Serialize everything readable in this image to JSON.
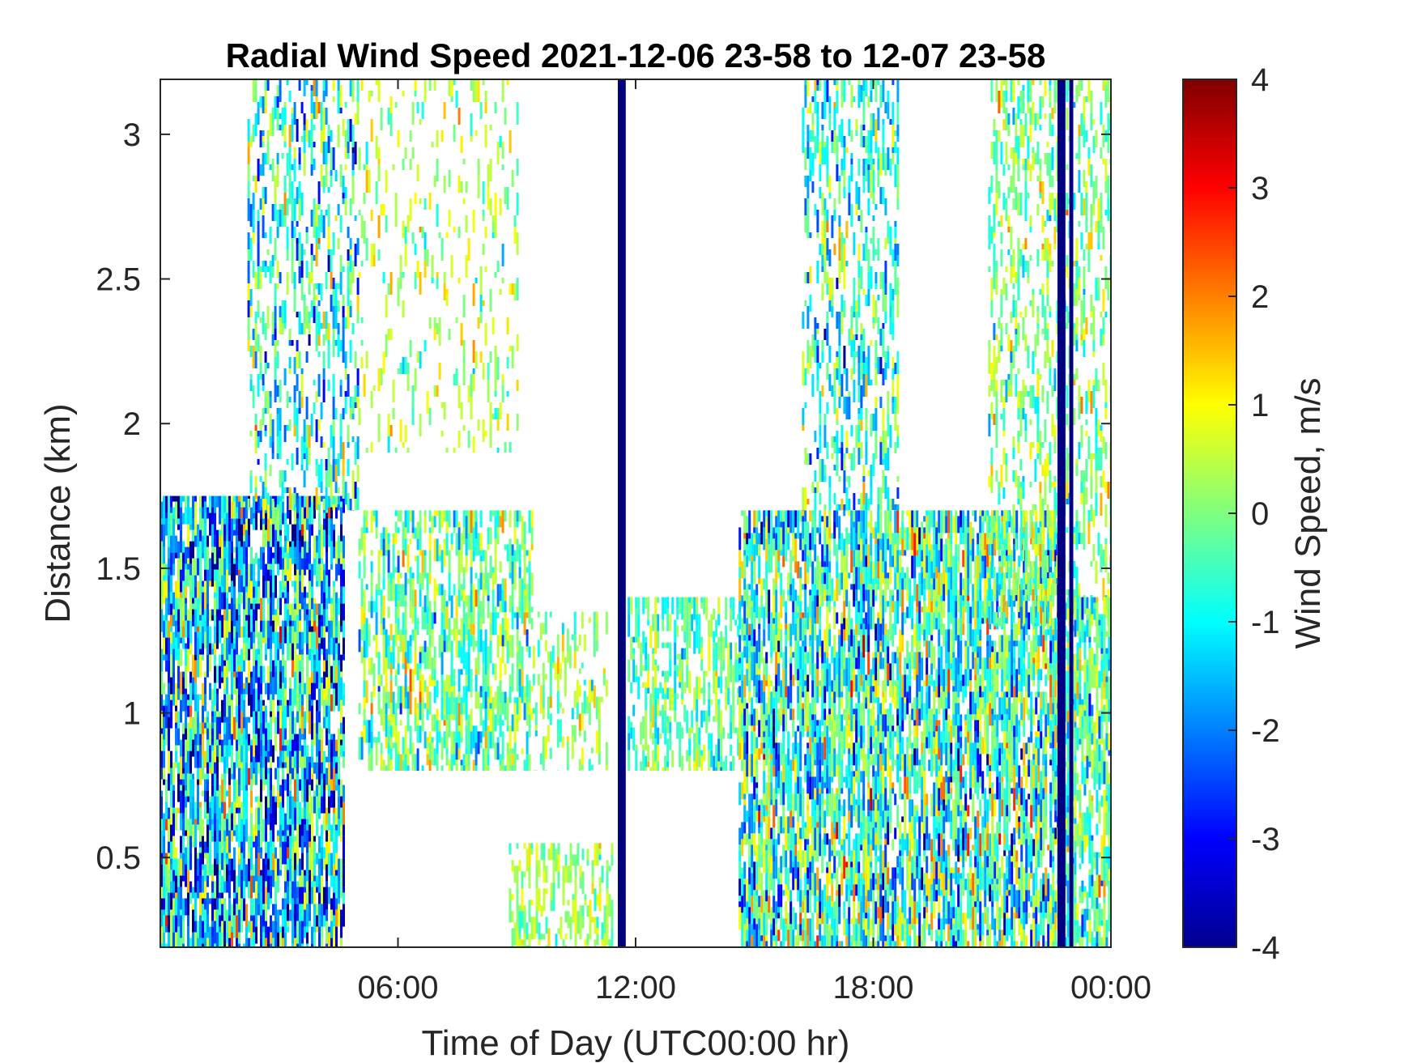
{
  "chart_data": {
    "type": "heatmap",
    "title": "Radial Wind Speed 2021-12-06 23-58 to 12-07 23-58",
    "xlabel": "Time of Day (UTC00:00 hr)",
    "ylabel": "Distance (km)",
    "colorbar_label": "Wind Speed, m/s",
    "colormap": "jet",
    "xlim_hours": [
      0,
      24
    ],
    "ylim": [
      0.19,
      3.19
    ],
    "clim": [
      -4,
      4
    ],
    "x_ticks": [
      {
        "hour": 6,
        "label": "06:00"
      },
      {
        "hour": 12,
        "label": "12:00"
      },
      {
        "hour": 18,
        "label": "18:00"
      },
      {
        "hour": 24,
        "label": "00:00"
      }
    ],
    "y_ticks": [
      {
        "value": 0.5,
        "label": "0.5"
      },
      {
        "value": 1,
        "label": "1"
      },
      {
        "value": 1.5,
        "label": "1.5"
      },
      {
        "value": 2,
        "label": "2"
      },
      {
        "value": 2.5,
        "label": "2.5"
      },
      {
        "value": 3,
        "label": "3"
      }
    ],
    "colorbar_ticks": [
      {
        "value": 4,
        "label": "4"
      },
      {
        "value": 3,
        "label": "3"
      },
      {
        "value": 2,
        "label": "2"
      },
      {
        "value": 1,
        "label": "1"
      },
      {
        "value": 0,
        "label": "0"
      },
      {
        "value": -1,
        "label": "-1"
      },
      {
        "value": -2,
        "label": "-2"
      },
      {
        "value": -3,
        "label": "-3"
      },
      {
        "value": -4,
        "label": "-4"
      }
    ],
    "grid": false,
    "data_regions": [
      {
        "name": "early-morning-lower",
        "t0": 0.0,
        "t1": 4.6,
        "r0": 0.19,
        "r1": 1.75,
        "mean": -1.4,
        "spread": 1.6,
        "density": 0.85
      },
      {
        "name": "early-morning-rising-column",
        "t0": 2.2,
        "t1": 5.0,
        "r0": 1.7,
        "r1": 3.19,
        "mean": -0.8,
        "spread": 1.2,
        "density": 0.4
      },
      {
        "name": "morning-plumes-upper",
        "t0": 5.0,
        "t1": 9.0,
        "r0": 1.9,
        "r1": 3.19,
        "mean": 0.3,
        "spread": 0.7,
        "density": 0.18
      },
      {
        "name": "morning-mid-layer",
        "t0": 5.0,
        "t1": 9.4,
        "r0": 0.8,
        "r1": 1.7,
        "mean": -0.2,
        "spread": 0.9,
        "density": 0.6
      },
      {
        "name": "late-morning-mid-layer",
        "t0": 9.4,
        "t1": 11.3,
        "r0": 0.8,
        "r1": 1.35,
        "mean": 0.1,
        "spread": 0.7,
        "density": 0.35
      },
      {
        "name": "late-morning-near-surface",
        "t0": 8.8,
        "t1": 11.4,
        "r0": 0.19,
        "r1": 0.55,
        "mean": 0.2,
        "spread": 0.5,
        "density": 0.45
      },
      {
        "name": "midday-mid-layer",
        "t0": 11.8,
        "t1": 14.6,
        "r0": 0.8,
        "r1": 1.4,
        "mean": -0.3,
        "spread": 0.7,
        "density": 0.55
      },
      {
        "name": "afternoon-lower",
        "t0": 14.6,
        "t1": 22.7,
        "r0": 0.19,
        "r1": 1.7,
        "mean": -0.6,
        "spread": 1.4,
        "density": 0.8
      },
      {
        "name": "afternoon-upper-columns",
        "t0": 16.2,
        "t1": 18.6,
        "r0": 1.7,
        "r1": 3.19,
        "mean": -0.8,
        "spread": 1.1,
        "density": 0.45
      },
      {
        "name": "evening-upper",
        "t0": 20.9,
        "t1": 24.0,
        "r0": 1.3,
        "r1": 3.19,
        "mean": 0.0,
        "spread": 0.8,
        "density": 0.4
      },
      {
        "name": "midnight-lower",
        "t0": 22.7,
        "t1": 24.0,
        "r0": 0.19,
        "r1": 1.4,
        "mean": -0.4,
        "spread": 1.0,
        "density": 0.75
      }
    ],
    "saturated_bands": [
      {
        "t0": 11.55,
        "t1": 11.75,
        "r0": 0.19,
        "r1": 3.19,
        "value": -4
      },
      {
        "t0": 22.65,
        "t1": 22.85,
        "r0": 0.19,
        "r1": 3.19,
        "value": -4
      },
      {
        "t0": 22.95,
        "t1": 23.05,
        "r0": 0.19,
        "r1": 3.19,
        "value": -4
      }
    ]
  }
}
